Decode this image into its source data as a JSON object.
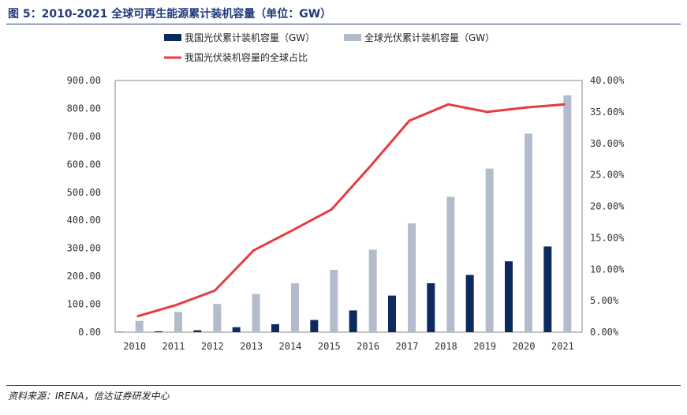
{
  "figure": {
    "title": "图 5：2010-2021 全球可再生能源累计装机容量（单位：GW）",
    "source": "资料来源：IRENA，信达证券研发中心"
  },
  "colors": {
    "china_bar": "#0d2a5e",
    "global_bar": "#b3bccc",
    "share_line": "#e83a3f",
    "title": "#1f3a7a"
  },
  "chart_data": {
    "type": "bar",
    "title": "",
    "xlabel": "",
    "ylabel": "",
    "categories": [
      "2010",
      "2011",
      "2012",
      "2013",
      "2014",
      "2015",
      "2016",
      "2017",
      "2018",
      "2019",
      "2020",
      "2021"
    ],
    "ylim": [
      0,
      900
    ],
    "y_ticks": [
      "0.00",
      "100.00",
      "200.00",
      "300.00",
      "400.00",
      "500.00",
      "600.00",
      "700.00",
      "800.00",
      "900.00"
    ],
    "y2lim": [
      0,
      40
    ],
    "y2_ticks": [
      "0.00%",
      "5.00%",
      "10.00%",
      "15.00%",
      "20.00%",
      "25.00%",
      "30.00%",
      "35.00%",
      "40.00%"
    ],
    "legend_placement": "top",
    "series": [
      {
        "name": "我国光伏累计装机容量（GW）",
        "type": "bar",
        "axis": "left",
        "values": [
          1.0,
          3.1,
          6.7,
          17.7,
          28.4,
          43.5,
          77.8,
          130.8,
          175.0,
          204.7,
          253.4,
          306.4
        ]
      },
      {
        "name": "全球光伏累计装机容量（GW）",
        "type": "bar",
        "axis": "left",
        "values": [
          40.3,
          72.0,
          100.9,
          136.6,
          175.0,
          223.0,
          295.0,
          389.0,
          484.0,
          585.0,
          710.0,
          847.0
        ]
      },
      {
        "name": "我国光伏装机容量的全球占比",
        "type": "line",
        "axis": "right",
        "values": [
          2.5,
          4.3,
          6.6,
          13.0,
          16.2,
          19.5,
          26.4,
          33.6,
          36.2,
          35.0,
          35.7,
          36.2
        ]
      }
    ]
  }
}
